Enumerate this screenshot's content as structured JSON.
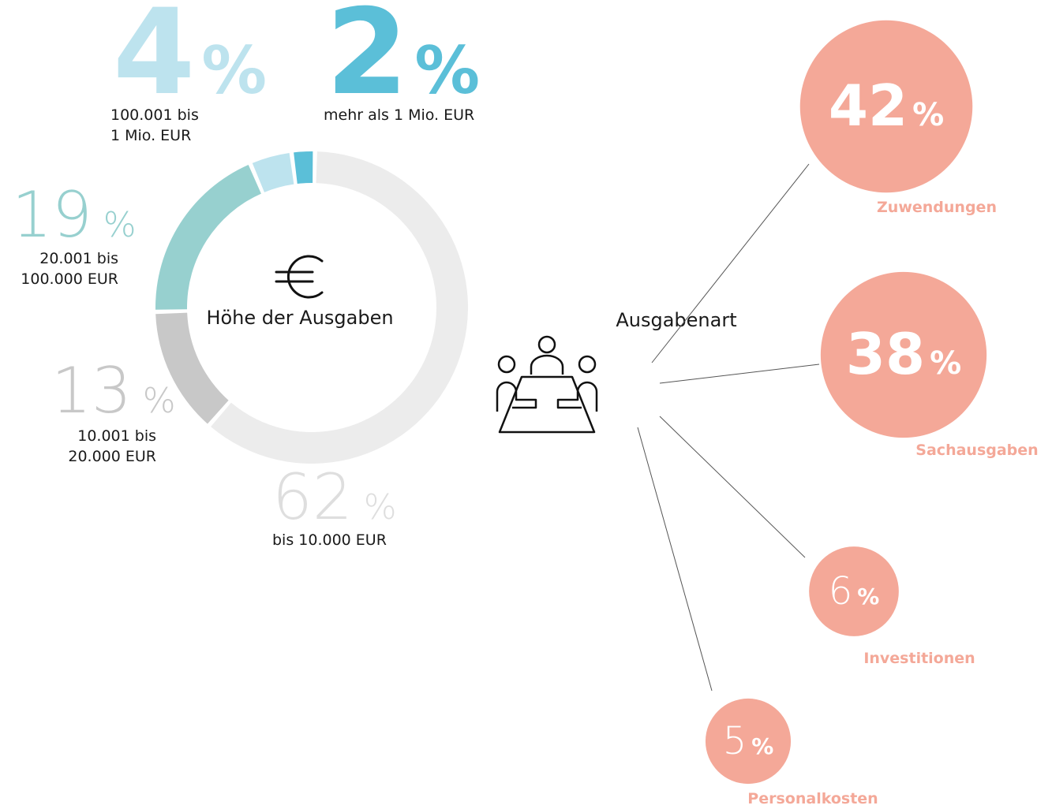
{
  "chart_data": [
    {
      "type": "donut",
      "title": "Höhe der Ausgaben",
      "unit": "%",
      "categories": [
        "bis 10.000 EUR",
        "10.001 bis\n20.000 EUR",
        "20.001 bis\n100.000 EUR",
        "100.001 bis\n1 Mio. EUR",
        "mehr als 1 Mio. EUR"
      ],
      "values": [
        62,
        13,
        19,
        4,
        2
      ],
      "colors": [
        "#ececec",
        "#c8c8c8",
        "#97d0cf",
        "#bde3ee",
        "#5bbfd8"
      ]
    },
    {
      "type": "bubble",
      "title": "Ausgabenart",
      "unit": "%",
      "categories": [
        "Zuwendungen",
        "Sachausgaben",
        "Investitionen",
        "Personalkosten"
      ],
      "values": [
        42,
        38,
        6,
        5
      ],
      "color": "#f4a898"
    }
  ]
}
